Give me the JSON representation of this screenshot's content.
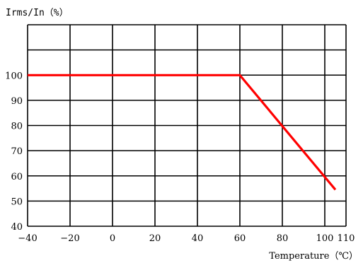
{
  "chart_data": {
    "type": "line",
    "ylabel": "Irms/In（%）",
    "xlabel": "Temperature（℃）",
    "x_ticks": [
      -40,
      -20,
      0,
      20,
      40,
      60,
      80,
      100,
      110
    ],
    "x_tick_labels": [
      "−40",
      "−20",
      "0",
      "20",
      "40",
      "60",
      "80",
      "100",
      "110"
    ],
    "y_ticks": [
      40,
      50,
      60,
      70,
      80,
      90,
      100
    ],
    "y_tick_labels": [
      "40",
      "50",
      "60",
      "70",
      "80",
      "90",
      "100"
    ],
    "xlim": [
      -40,
      110
    ],
    "ylim": [
      40,
      120
    ],
    "grid": true,
    "series": [
      {
        "color": "#ff0000",
        "x": [
          -40,
          60,
          105
        ],
        "y": [
          100,
          100,
          54.5
        ]
      }
    ]
  }
}
